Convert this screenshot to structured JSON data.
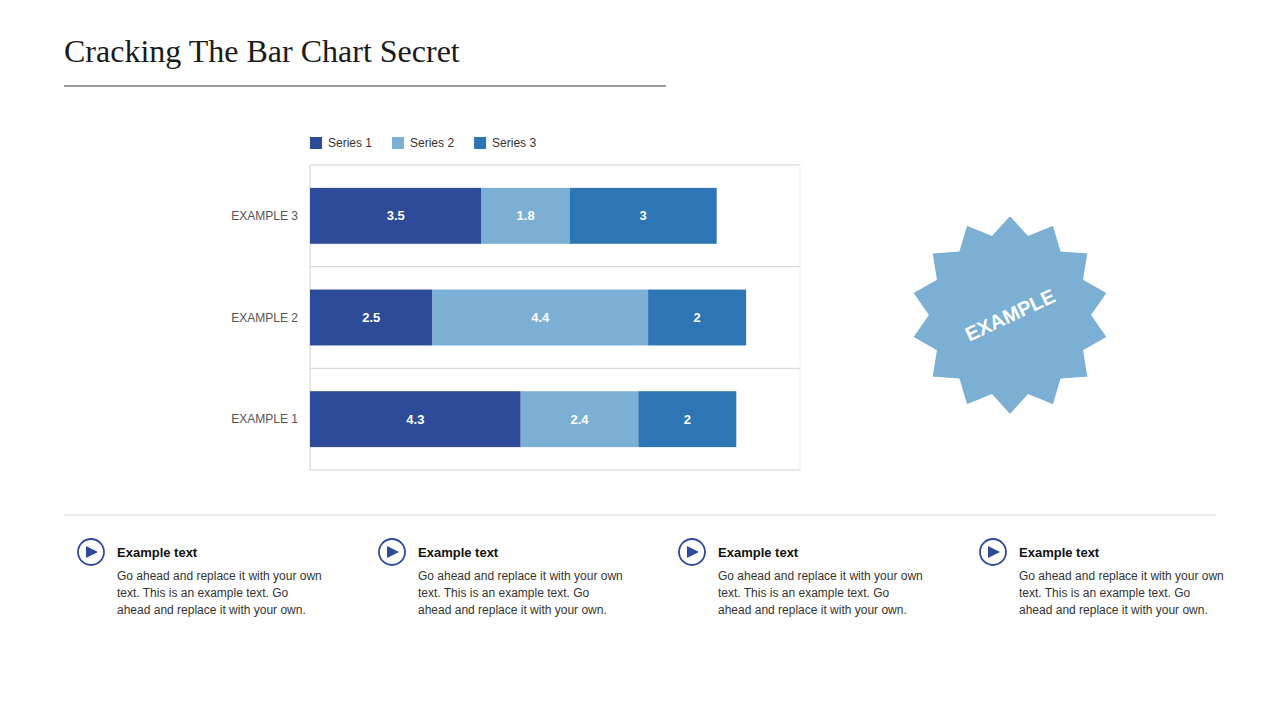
{
  "chart_data": {
    "type": "bar",
    "orientation": "horizontal",
    "stacked": true,
    "data_labels": true,
    "tick_labels": "y",
    "legend": "top",
    "title": "Cracking The Bar Chart Secret",
    "categories": [
      "EXAMPLE 1",
      "EXAMPLE 2",
      "EXAMPLE 3"
    ],
    "series": [
      {
        "name": "Series 1",
        "color": "#2E4B9A",
        "values": [
          4.3,
          2.5,
          3.5
        ]
      },
      {
        "name": "Series 2",
        "color": "#7BAFD4",
        "values": [
          2.4,
          4.4,
          1.8
        ]
      },
      {
        "name": "Series 3",
        "color": "#2E75B6",
        "values": [
          2,
          2,
          3
        ]
      }
    ],
    "xlim": [
      0,
      10
    ],
    "annotations": [
      "EXAMPLE"
    ],
    "notes": [
      {
        "title": "Example text",
        "body": "Go ahead and replace it with your own text. This is an example text. Go ahead and replace it with your own."
      },
      {
        "title": "Example text",
        "body": "Go ahead and replace it with your own text. This is an example text. Go ahead and replace it with your own."
      },
      {
        "title": "Example text",
        "body": "Go ahead and replace it with your own text. This is an example text. Go ahead and replace it with your own."
      },
      {
        "title": "Example text",
        "body": "Go ahead and replace it with your own text. This is an example text. Go ahead and replace it with your own."
      }
    ]
  }
}
